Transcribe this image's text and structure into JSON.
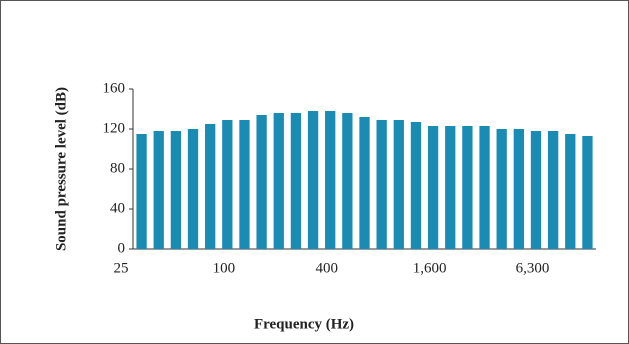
{
  "chart_data": {
    "type": "bar",
    "x_label": "Frequency (Hz)",
    "y_label": "Sound pressure level (dB)",
    "categories": [
      "25",
      null,
      null,
      null,
      null,
      null,
      "100",
      null,
      null,
      null,
      null,
      null,
      "400",
      null,
      null,
      null,
      null,
      null,
      "1,600",
      null,
      null,
      null,
      null,
      null,
      "6,300",
      null,
      null
    ],
    "values": [
      115,
      118,
      118,
      120,
      125,
      129,
      129,
      134,
      136,
      136,
      138,
      138,
      136,
      132,
      129,
      129,
      127,
      123,
      123,
      123,
      123,
      120,
      120,
      118,
      118,
      115,
      113
    ],
    "color": "#1a8bb3",
    "ylim": [
      0,
      160
    ],
    "yticks": [
      0,
      40,
      80,
      120,
      160
    ],
    "grid": false
  }
}
